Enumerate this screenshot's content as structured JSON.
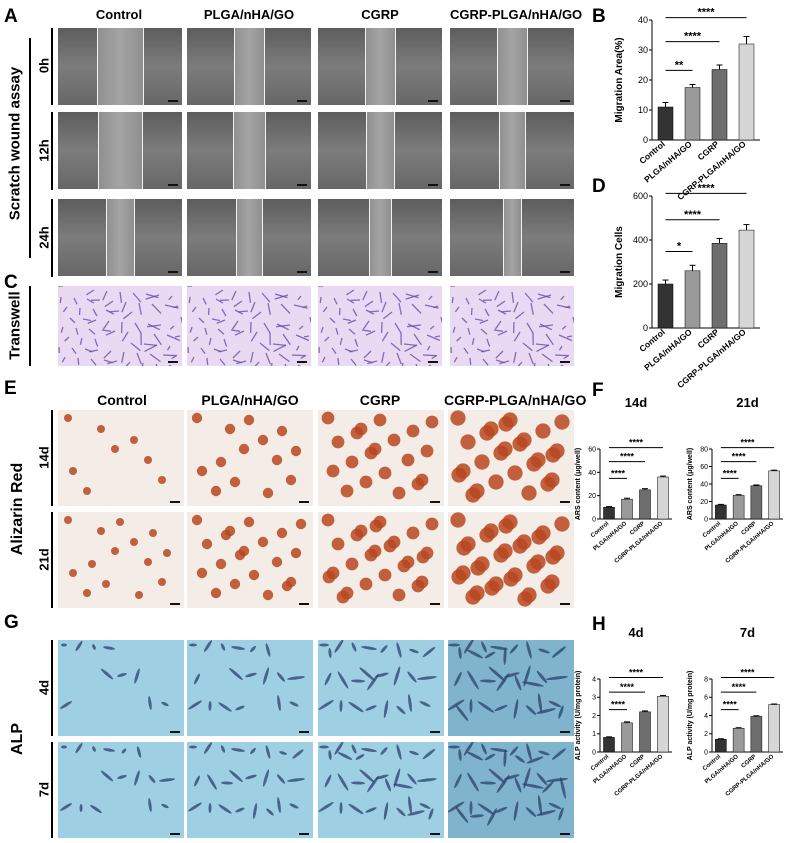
{
  "panels": {
    "A": "A",
    "B": "B",
    "C": "C",
    "D": "D",
    "E": "E",
    "F": "F",
    "G": "G",
    "H": "H"
  },
  "groups": [
    "Control",
    "PLGA/nHA/GO",
    "CGRP",
    "CGRP-PLGA/nHA/GO"
  ],
  "scratch": {
    "title": "Scratch wound assay",
    "rows": [
      "0h",
      "12h",
      "24h"
    ]
  },
  "transwell": {
    "title": "Transwell"
  },
  "alizarin": {
    "title": "Alizarin Red",
    "rows": [
      "14d",
      "21d"
    ]
  },
  "alp": {
    "title": "ALP",
    "rows": [
      "4d",
      "7d"
    ]
  },
  "colors": {
    "bar1": "#333333",
    "bar2": "#9a9a9a",
    "bar3": "#6e6e6e",
    "bar4": "#d6d6d6"
  },
  "chart_data": [
    {
      "id": "B",
      "type": "bar",
      "ylabel": "Migration Area(%)",
      "ylim": [
        0,
        40
      ],
      "yticks": [
        0,
        10,
        20,
        30,
        40
      ],
      "categories": [
        "Control",
        "PLGA/nHA/GO",
        "CGRP",
        "CGRP-PLGA/nHA/GO"
      ],
      "values": [
        11,
        17.5,
        23.5,
        32
      ],
      "errors": [
        1.5,
        1,
        1.5,
        2.5
      ],
      "significance": [
        {
          "to": 1,
          "label": "**"
        },
        {
          "to": 2,
          "label": "****"
        },
        {
          "to": 3,
          "label": "****"
        }
      ]
    },
    {
      "id": "D",
      "type": "bar",
      "ylabel": "Migration Cells",
      "ylim": [
        0,
        600
      ],
      "yticks": [
        0,
        200,
        400,
        600
      ],
      "categories": [
        "Control",
        "PLGA/nHA/GO",
        "CGRP",
        "CGRP-PLGA/nHA/GO"
      ],
      "values": [
        200,
        260,
        385,
        445
      ],
      "errors": [
        18,
        25,
        22,
        25
      ],
      "significance": [
        {
          "to": 1,
          "label": "*"
        },
        {
          "to": 2,
          "label": "****"
        },
        {
          "to": 3,
          "label": "****"
        }
      ]
    },
    {
      "id": "F1",
      "type": "bar",
      "title": "14d",
      "ylabel": "ARS content (μg/well)",
      "ylim": [
        0,
        60
      ],
      "yticks": [
        0,
        20,
        40,
        60
      ],
      "categories": [
        "Control",
        "PLGA/nHA/GO",
        "CGRP",
        "CGRP-PLGA/nHA/GO"
      ],
      "values": [
        10,
        17,
        25,
        36
      ],
      "errors": [
        0.6,
        0.8,
        1,
        0.8
      ],
      "significance": [
        {
          "to": 1,
          "label": "****"
        },
        {
          "to": 2,
          "label": "****"
        },
        {
          "to": 3,
          "label": "****"
        }
      ]
    },
    {
      "id": "F2",
      "type": "bar",
      "title": "21d",
      "ylabel": "ARS content (μg/well)",
      "ylim": [
        0,
        80
      ],
      "yticks": [
        0,
        20,
        40,
        60,
        80
      ],
      "categories": [
        "Control",
        "PLGA/nHA/GO",
        "CGRP",
        "CGRP-PLGA/nHA/GO"
      ],
      "values": [
        16,
        27,
        38,
        55
      ],
      "errors": [
        0.7,
        0.8,
        0.9,
        0.8
      ],
      "significance": [
        {
          "to": 1,
          "label": "****"
        },
        {
          "to": 2,
          "label": "****"
        },
        {
          "to": 3,
          "label": "****"
        }
      ]
    },
    {
      "id": "H1",
      "type": "bar",
      "title": "4d",
      "ylabel": "ALP activity (U/mg protein)",
      "ylim": [
        0,
        4
      ],
      "yticks": [
        0,
        1,
        2,
        3,
        4
      ],
      "categories": [
        "Control",
        "PLGA/nHA/GO",
        "CGRP",
        "CGRP-PLGA/nHA/GO"
      ],
      "values": [
        0.8,
        1.6,
        2.2,
        3.05
      ],
      "errors": [
        0.03,
        0.05,
        0.05,
        0.05
      ],
      "significance": [
        {
          "to": 1,
          "label": "****"
        },
        {
          "to": 2,
          "label": "****"
        },
        {
          "to": 3,
          "label": "****"
        }
      ]
    },
    {
      "id": "H2",
      "type": "bar",
      "title": "7d",
      "ylabel": "ALP activity (U/mg protein)",
      "ylim": [
        0,
        8
      ],
      "yticks": [
        0,
        2,
        4,
        6,
        8
      ],
      "categories": [
        "Control",
        "PLGA/nHA/GO",
        "CGRP",
        "CGRP-PLGA/nHA/GO"
      ],
      "values": [
        1.4,
        2.6,
        3.9,
        5.2
      ],
      "errors": [
        0.05,
        0.06,
        0.07,
        0.06
      ],
      "significance": [
        {
          "to": 1,
          "label": "****"
        },
        {
          "to": 2,
          "label": "****"
        },
        {
          "to": 3,
          "label": "****"
        }
      ]
    }
  ]
}
